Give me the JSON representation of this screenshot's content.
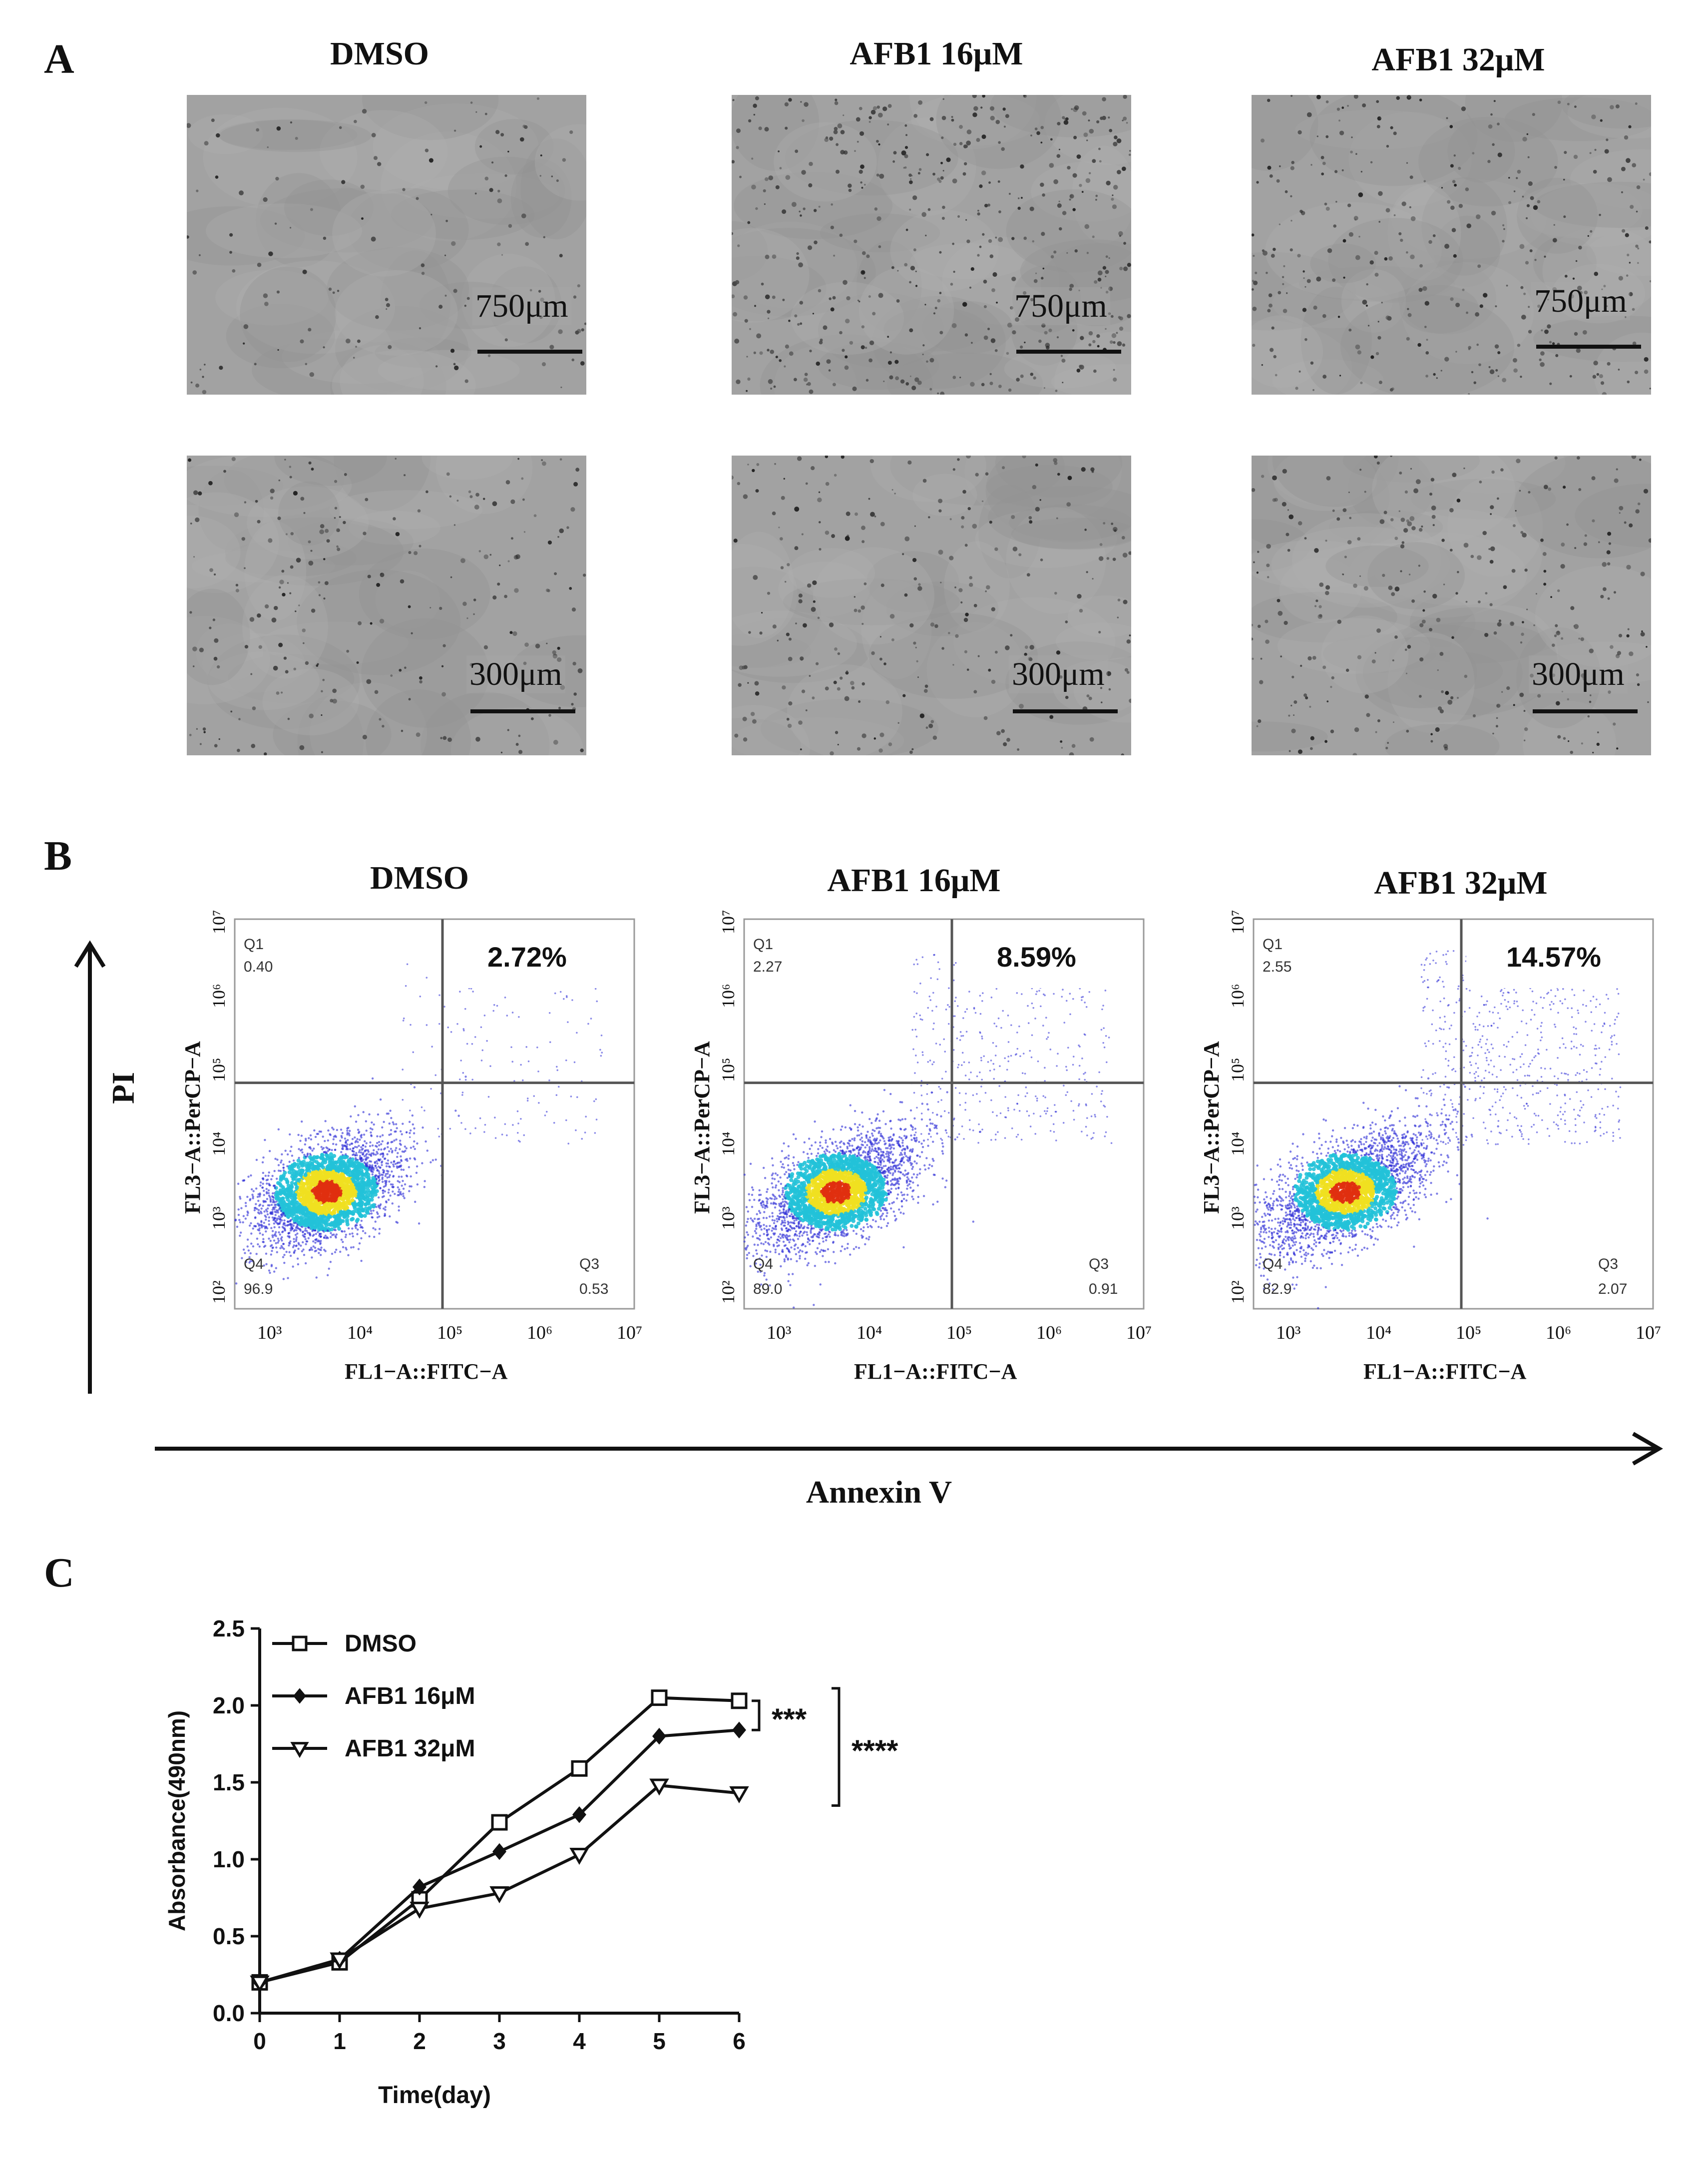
{
  "panel_a": {
    "letter": "A",
    "columns": [
      "DMSO",
      "AFB1 16μM",
      "AFB1 32μM"
    ],
    "scale_top": "750μm",
    "scale_bottom": "300μm"
  },
  "panel_b": {
    "letter": "B",
    "columns": [
      "DMSO",
      "AFB1 16μM",
      "AFB1 32μM"
    ],
    "y_axis_label": "FL3−A::PerCP−A",
    "x_axis_label": "FL1−A::FITC−A",
    "pi_label": "PI",
    "annexin_label": "Annexin V",
    "x_ticks": [
      "10³",
      "10⁴",
      "10⁵",
      "10⁶",
      "10⁷"
    ],
    "y_ticks": [
      "10²",
      "10³",
      "10⁴",
      "10⁵",
      "10⁶",
      "10⁷"
    ],
    "plots": [
      {
        "q1_label": "Q1",
        "q1": "0.40",
        "q2_percent": "2.72%",
        "q3_label": "Q3",
        "q3": "0.53",
        "q4_label": "Q4",
        "q4": "96.9"
      },
      {
        "q1_label": "Q1",
        "q1": "2.27",
        "q2_percent": "8.59%",
        "q3_label": "Q3",
        "q3": "0.91",
        "q4_label": "Q4",
        "q4": "89.0"
      },
      {
        "q1_label": "Q1",
        "q1": "2.55",
        "q2_percent": "14.57%",
        "q3_label": "Q3",
        "q3": "2.07",
        "q4_label": "Q4",
        "q4": "82.9"
      }
    ],
    "colors": {
      "low_density": "#2a2ad6",
      "mid": "#22c2d8",
      "high": "#f0e020",
      "peak": "#e03010"
    }
  },
  "chart_data": {
    "type": "line",
    "panel_letter": "C",
    "xlabel": "Time(day)",
    "ylabel": "Absorbance(490nm)",
    "x": [
      0,
      1,
      2,
      3,
      4,
      5,
      6
    ],
    "x_tick_labels": [
      "0",
      "1",
      "2",
      "3",
      "4",
      "5",
      "6"
    ],
    "y_tick_labels": [
      "0.0",
      "0.5",
      "1.0",
      "1.5",
      "2.0",
      "2.5"
    ],
    "xlim": [
      0,
      6
    ],
    "ylim": [
      0,
      2.5
    ],
    "series": [
      {
        "name": "DMSO",
        "marker": "square-open",
        "values": [
          0.2,
          0.33,
          0.74,
          1.24,
          1.59,
          2.05,
          2.03
        ]
      },
      {
        "name": "AFB1 16μM",
        "marker": "diamond-filled",
        "values": [
          0.2,
          0.35,
          0.82,
          1.05,
          1.29,
          1.8,
          1.84
        ]
      },
      {
        "name": "AFB1 32μM",
        "marker": "triangle-down-open",
        "values": [
          0.2,
          0.35,
          0.68,
          0.78,
          1.03,
          1.48,
          1.43
        ]
      }
    ],
    "significance": [
      {
        "label": "***",
        "between": [
          "DMSO",
          "AFB1 16μM"
        ]
      },
      {
        "label": "****",
        "between": [
          "DMSO",
          "AFB1 32μM"
        ]
      }
    ],
    "legend_position": "top-left",
    "grid": false
  }
}
